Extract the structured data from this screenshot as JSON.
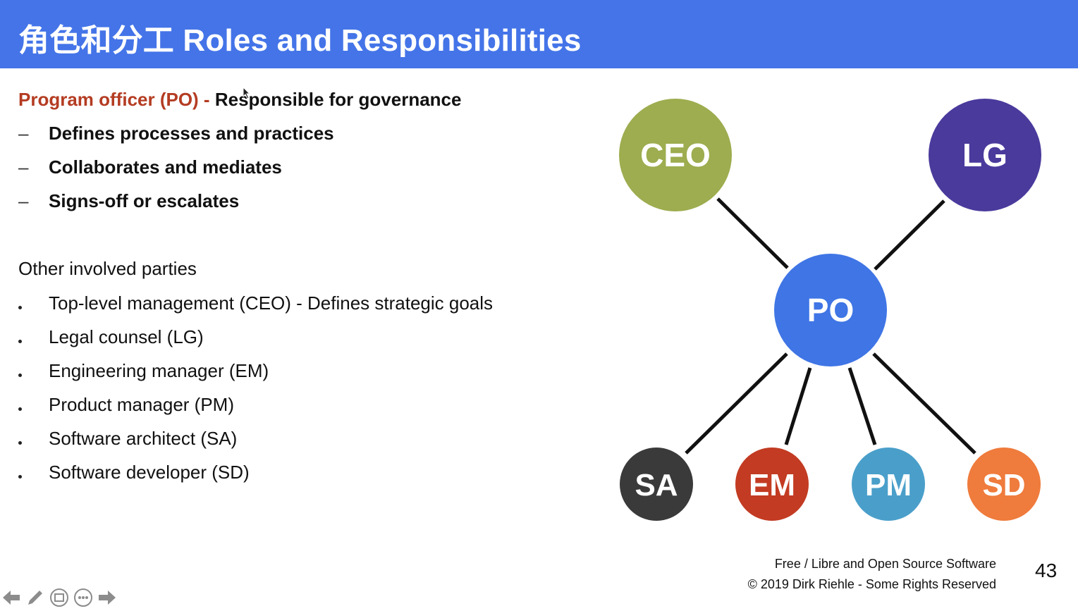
{
  "header": {
    "title": "角色和分工 Roles and Responsibilities",
    "background": "#4474e8"
  },
  "program_officer": {
    "role": "Program officer (PO) - ",
    "description": "Responsible for governance",
    "role_color": "#b43c22",
    "duties": [
      {
        "marker": "–",
        "text": "Defines processes and practices"
      },
      {
        "marker": "–",
        "text": "Collaborates and mediates"
      },
      {
        "marker": "–",
        "text": "Signs-off or escalates"
      }
    ]
  },
  "other_parties": {
    "heading": "Other involved parties",
    "items": [
      {
        "text": "Top-level management (CEO) - Defines strategic goals"
      },
      {
        "text": "Legal counsel (LG)"
      },
      {
        "text": "Engineering manager (EM)"
      },
      {
        "text": "Product manager (PM)"
      },
      {
        "text": "Software architect (SA)"
      },
      {
        "text": "Software developer (SD)"
      }
    ]
  },
  "diagram": {
    "center": {
      "label": "PO",
      "color": "#3f75e5"
    },
    "top_nodes": [
      {
        "label": "CEO",
        "color": "#9dad4f"
      },
      {
        "label": "LG",
        "color": "#4a3a9c"
      }
    ],
    "bottom_nodes": [
      {
        "label": "SA",
        "color": "#3a3a3a"
      },
      {
        "label": "EM",
        "color": "#c23b22"
      },
      {
        "label": "PM",
        "color": "#4a9fca"
      },
      {
        "label": "SD",
        "color": "#ef7b3c"
      }
    ]
  },
  "footer": {
    "line1": "Free / Libre and Open Source Software",
    "line2": "© 2019 Dirk Riehle - Some Rights Reserved",
    "page_number": "43"
  },
  "nav": {
    "icons": [
      "arrow-left-icon",
      "pen-icon",
      "slide-icon",
      "more-icon",
      "arrow-right-icon"
    ]
  }
}
